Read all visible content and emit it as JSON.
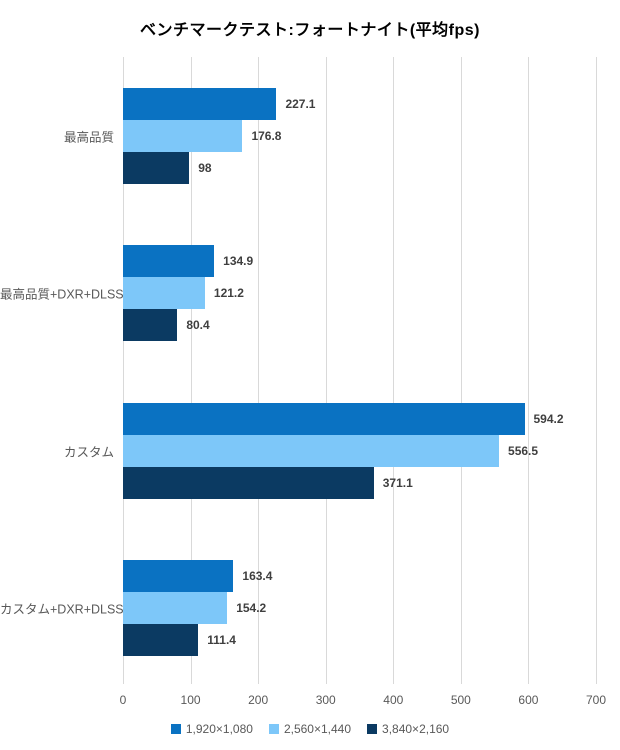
{
  "title": "ベンチマークテスト:フォートナイト(平均fps)",
  "chart_data": {
    "type": "bar",
    "orientation": "horizontal",
    "title": "ベンチマークテスト:フォートナイト(平均fps)",
    "categories": [
      "最高品質",
      "最高品質+DXR+DLSS",
      "カスタム",
      "カスタム+DXR+DLSS"
    ],
    "series": [
      {
        "name": "1,920×1,080",
        "color": "#0a72c2",
        "values": [
          227.1,
          134.9,
          594.2,
          163.4
        ],
        "labels": [
          "227.1",
          "134.9",
          "594.2",
          "163.4"
        ]
      },
      {
        "name": "2,560×1,440",
        "color": "#7dc7f9",
        "values": [
          176.8,
          121.2,
          556.5,
          154.2
        ],
        "labels": [
          "176.8",
          "121.2",
          "556.5",
          "154.2"
        ]
      },
      {
        "name": "3,840×2,160",
        "color": "#0b3a62",
        "values": [
          98,
          80.4,
          371.1,
          111.4
        ],
        "labels": [
          "98",
          "80.4",
          "371.1",
          "111.4"
        ]
      }
    ],
    "xlabel": "",
    "ylabel": "",
    "xlim": [
      0,
      700
    ],
    "xticks": [
      0,
      100,
      200,
      300,
      400,
      500,
      600,
      700
    ],
    "xtick_labels": [
      "0",
      "100",
      "200",
      "300",
      "400",
      "500",
      "600",
      "700"
    ],
    "grid": true,
    "legend_position": "bottom",
    "colors": {
      "gridline": "#d9d9d9",
      "axis_text": "#595959",
      "value_text": "#3f3f3f",
      "category_text": "#595959",
      "title_text": "#000000",
      "background": "#ffffff"
    }
  }
}
